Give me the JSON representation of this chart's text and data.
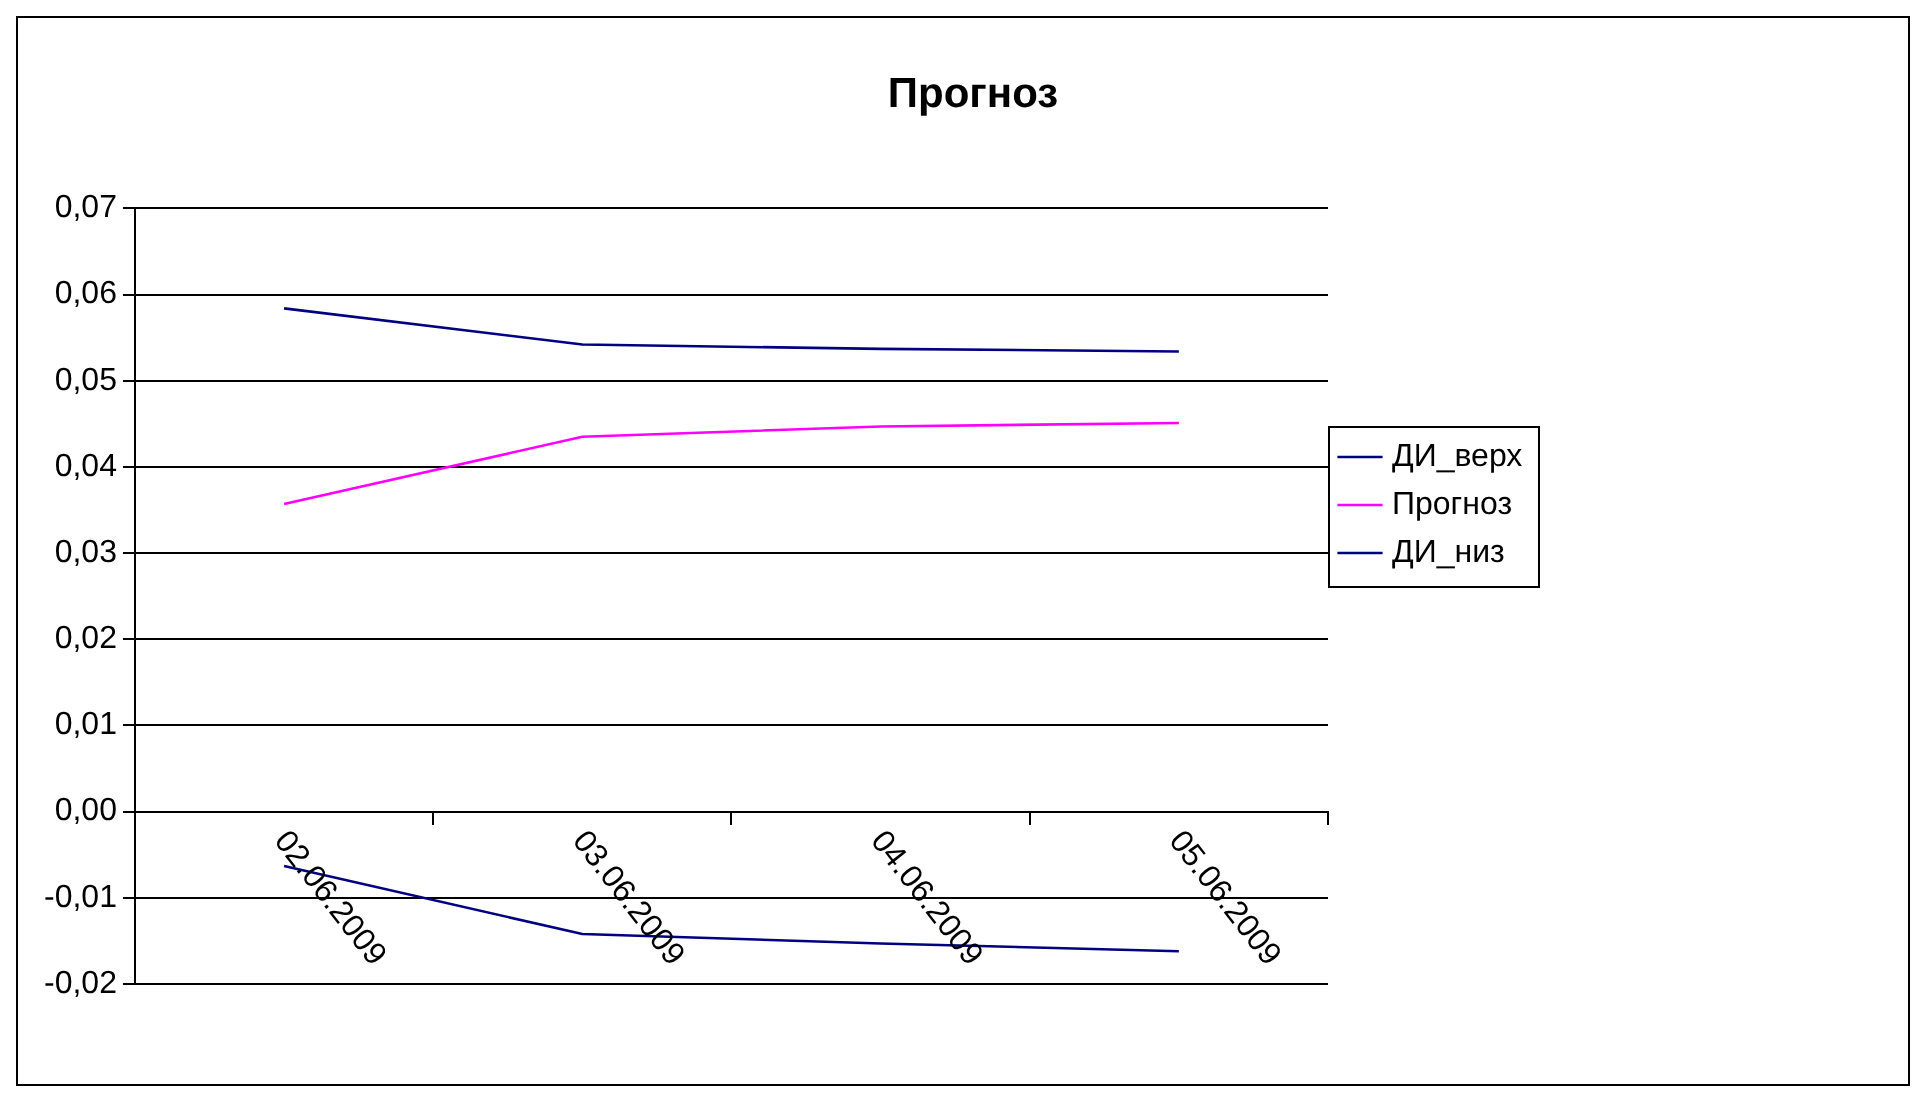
{
  "chart_data": {
    "type": "line",
    "title": "Прогноз",
    "categories": [
      "02.06.2009",
      "03.06.2009",
      "04.06.2009",
      "05.06.2009"
    ],
    "series": [
      {
        "name": "ДИ_верх",
        "color": "#000080",
        "values": [
          0.0584,
          0.0542,
          0.0537,
          0.0534
        ]
      },
      {
        "name": "Прогноз",
        "color": "#ff00ff",
        "values": [
          0.0357,
          0.0435,
          0.0447,
          0.0451
        ]
      },
      {
        "name": "ДИ_низ",
        "color": "#000080",
        "values": [
          -0.0063,
          -0.0142,
          -0.0153,
          -0.0162
        ]
      }
    ],
    "ylim": [
      -0.02,
      0.07
    ],
    "yticks": [
      {
        "value": -0.02,
        "label": "-0,02"
      },
      {
        "value": -0.01,
        "label": "-0,01"
      },
      {
        "value": 0,
        "label": "0,00"
      },
      {
        "value": 0.01,
        "label": "0,01"
      },
      {
        "value": 0.02,
        "label": "0,02"
      },
      {
        "value": 0.03,
        "label": "0,03"
      },
      {
        "value": 0.04,
        "label": "0,04"
      },
      {
        "value": 0.05,
        "label": "0,05"
      },
      {
        "value": 0.06,
        "label": "0,06"
      },
      {
        "value": 0.07,
        "label": "0,07"
      }
    ],
    "grid": "y",
    "legend": "right",
    "marker": "none",
    "line_style": "solid"
  }
}
